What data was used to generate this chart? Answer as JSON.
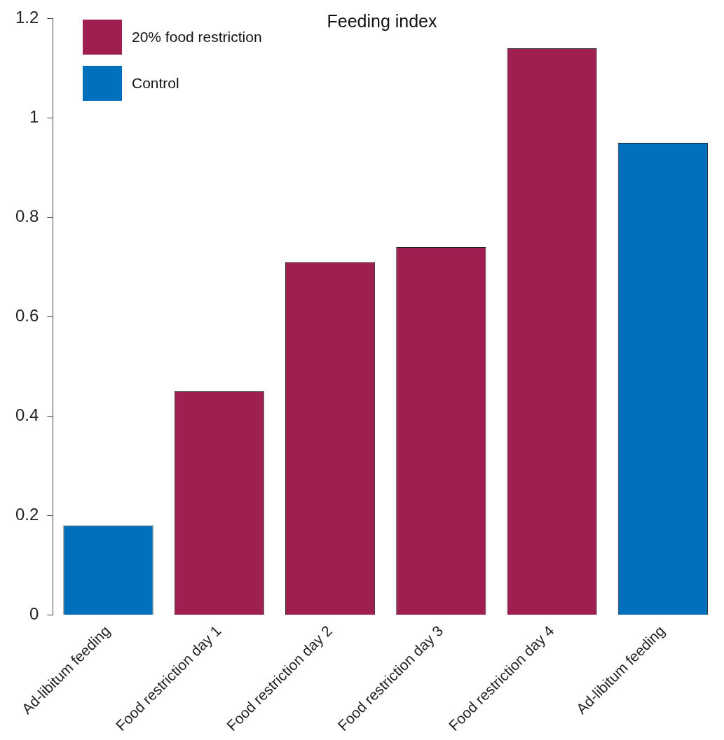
{
  "chart_data": {
    "type": "bar",
    "title": "Feeding index",
    "categories": [
      "Ad-libitum feeding",
      "Food restriction day 1",
      "Food restriction day 2",
      "Food restriction day 3",
      "Food restriction day 4",
      "Ad-libitum feeding"
    ],
    "series": [
      {
        "name": "20% food restriction",
        "color": "#a01f51",
        "values": [
          null,
          0.45,
          0.71,
          0.74,
          1.14,
          null
        ]
      },
      {
        "name": "Control",
        "color": "#0070bd",
        "values": [
          0.18,
          null,
          null,
          null,
          null,
          0.95
        ]
      }
    ],
    "ylim": [
      0,
      1.2
    ],
    "yticks": [
      0,
      0.2,
      0.4,
      0.6,
      0.8,
      1,
      1.2
    ],
    "grid": false,
    "legend": "top left"
  }
}
